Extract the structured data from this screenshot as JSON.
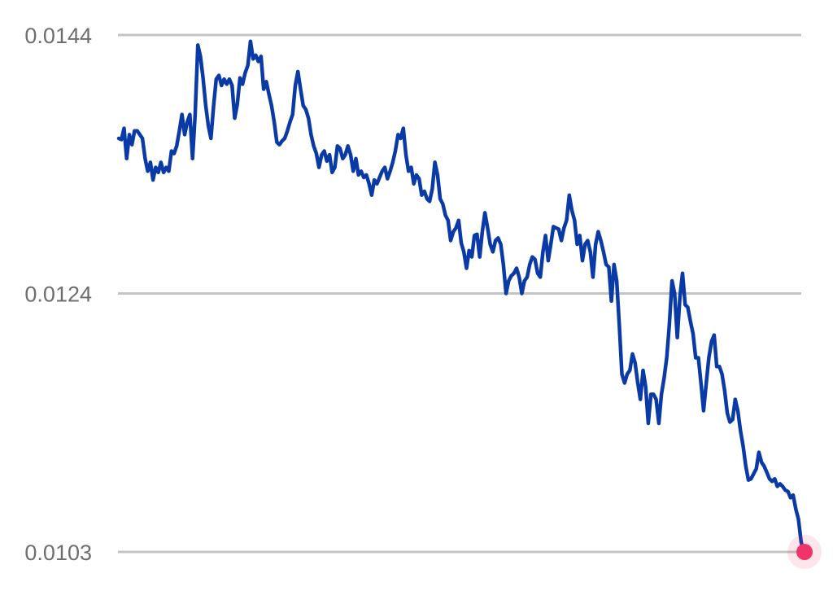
{
  "chart_data": {
    "type": "line",
    "title": "",
    "xlabel": "",
    "ylabel": "",
    "ylim": [
      0.01031,
      0.01441
    ],
    "y_ticks": [
      {
        "value": 0.01441,
        "label": "0.0144"
      },
      {
        "value": 0.01236,
        "label": "0.0124"
      },
      {
        "value": 0.01031,
        "label": "0.0103"
      }
    ],
    "grid": true,
    "line_color": "#0a3aa6",
    "grid_color": "#c4c4c4",
    "last_point_marker_color": "#f0346a",
    "values": [
      0.01359,
      0.01358,
      0.01367,
      0.01343,
      0.01362,
      0.01354,
      0.01365,
      0.01365,
      0.01362,
      0.01359,
      0.01343,
      0.01333,
      0.0134,
      0.01326,
      0.01336,
      0.01332,
      0.0134,
      0.01332,
      0.01336,
      0.01333,
      0.01349,
      0.01347,
      0.01353,
      0.01365,
      0.01378,
      0.01362,
      0.01372,
      0.01378,
      0.01343,
      0.01378,
      0.01433,
      0.01424,
      0.01407,
      0.01385,
      0.01369,
      0.01359,
      0.01385,
      0.01406,
      0.01409,
      0.01401,
      0.01406,
      0.01402,
      0.01406,
      0.01401,
      0.01375,
      0.01386,
      0.01407,
      0.01402,
      0.01411,
      0.01417,
      0.01436,
      0.01422,
      0.01425,
      0.0142,
      0.01424,
      0.01398,
      0.01404,
      0.01394,
      0.01385,
      0.01372,
      0.01356,
      0.01354,
      0.01357,
      0.01359,
      0.01365,
      0.01372,
      0.01378,
      0.01401,
      0.01412,
      0.01398,
      0.01385,
      0.01382,
      0.01375,
      0.01362,
      0.01353,
      0.01347,
      0.01336,
      0.01346,
      0.01349,
      0.01341,
      0.01346,
      0.01332,
      0.01336,
      0.01353,
      0.01351,
      0.01343,
      0.01346,
      0.01353,
      0.01346,
      0.01333,
      0.01343,
      0.0133,
      0.01333,
      0.01328,
      0.0133,
      0.01323,
      0.01314,
      0.01326,
      0.01323,
      0.01328,
      0.01333,
      0.01336,
      0.01327,
      0.01333,
      0.0134,
      0.01349,
      0.01362,
      0.01359,
      0.01367,
      0.01346,
      0.01333,
      0.01336,
      0.01323,
      0.0133,
      0.01327,
      0.01314,
      0.01317,
      0.01311,
      0.01309,
      0.01319,
      0.0134,
      0.0133,
      0.01311,
      0.01307,
      0.01298,
      0.01294,
      0.01278,
      0.01285,
      0.01288,
      0.01294,
      0.01276,
      0.01269,
      0.01256,
      0.0127,
      0.01265,
      0.01282,
      0.01283,
      0.01265,
      0.01285,
      0.013,
      0.01288,
      0.01275,
      0.01269,
      0.01278,
      0.0128,
      0.01275,
      0.01259,
      0.01236,
      0.01246,
      0.0125,
      0.01252,
      0.01256,
      0.01249,
      0.01236,
      0.01246,
      0.01249,
      0.01259,
      0.01265,
      0.01263,
      0.01252,
      0.01249,
      0.01269,
      0.01282,
      0.01262,
      0.01275,
      0.01289,
      0.01288,
      0.01287,
      0.01278,
      0.01288,
      0.01294,
      0.01314,
      0.01302,
      0.01294,
      0.01275,
      0.01282,
      0.01262,
      0.01275,
      0.01278,
      0.01269,
      0.01249,
      0.01275,
      0.01285,
      0.01278,
      0.01269,
      0.01259,
      0.01257,
      0.0123,
      0.01259,
      0.01246,
      0.01211,
      0.01172,
      0.01165,
      0.01172,
      0.01175,
      0.01188,
      0.01181,
      0.01165,
      0.01152,
      0.01175,
      0.01162,
      0.01133,
      0.01156,
      0.01156,
      0.01152,
      0.01133,
      0.01156,
      0.01169,
      0.01185,
      0.01211,
      0.01246,
      0.01236,
      0.01201,
      0.01233,
      0.01252,
      0.01227,
      0.01225,
      0.01214,
      0.01204,
      0.01185,
      0.01185,
      0.01165,
      0.01143,
      0.01165,
      0.01185,
      0.01198,
      0.01203,
      0.01178,
      0.01178,
      0.01172,
      0.01159,
      0.01141,
      0.01134,
      0.01136,
      0.01152,
      0.01143,
      0.01127,
      0.01115,
      0.01099,
      0.01088,
      0.01089,
      0.01093,
      0.01097,
      0.0111,
      0.01102,
      0.01099,
      0.01094,
      0.01089,
      0.01087,
      0.01089,
      0.01083,
      0.01085,
      0.01083,
      0.0108,
      0.01079,
      0.01074,
      0.01076,
      0.01065,
      0.01057,
      0.01039,
      0.01031
    ]
  }
}
